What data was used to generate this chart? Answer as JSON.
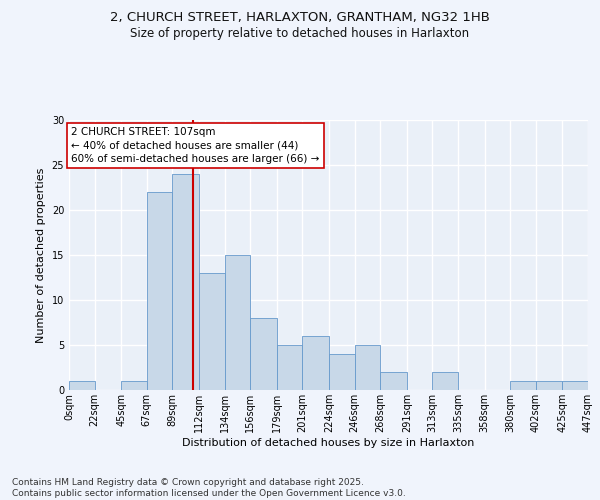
{
  "title_line1": "2, CHURCH STREET, HARLAXTON, GRANTHAM, NG32 1HB",
  "title_line2": "Size of property relative to detached houses in Harlaxton",
  "xlabel": "Distribution of detached houses by size in Harlaxton",
  "ylabel": "Number of detached properties",
  "bin_edges": [
    0,
    22,
    45,
    67,
    89,
    112,
    134,
    156,
    179,
    201,
    224,
    246,
    268,
    291,
    313,
    335,
    358,
    380,
    402,
    425,
    447
  ],
  "bin_labels": [
    "0sqm",
    "22sqm",
    "45sqm",
    "67sqm",
    "89sqm",
    "112sqm",
    "134sqm",
    "156sqm",
    "179sqm",
    "201sqm",
    "224sqm",
    "246sqm",
    "268sqm",
    "291sqm",
    "313sqm",
    "335sqm",
    "358sqm",
    "380sqm",
    "402sqm",
    "425sqm",
    "447sqm"
  ],
  "counts": [
    1,
    0,
    1,
    22,
    24,
    13,
    15,
    8,
    5,
    6,
    4,
    5,
    2,
    0,
    2,
    0,
    0,
    1,
    1,
    1
  ],
  "bar_color": "#c8d8e8",
  "bar_edge_color": "#6699cc",
  "property_size": 107,
  "property_line_color": "#cc0000",
  "annotation_text": "2 CHURCH STREET: 107sqm\n← 40% of detached houses are smaller (44)\n60% of semi-detached houses are larger (66) →",
  "annotation_box_color": "#ffffff",
  "annotation_box_edge": "#cc0000",
  "ylim": [
    0,
    30
  ],
  "yticks": [
    0,
    5,
    10,
    15,
    20,
    25,
    30
  ],
  "background_color": "#eaf0f8",
  "grid_color": "#ffffff",
  "fig_bg_color": "#f0f4fc",
  "footer_text": "Contains HM Land Registry data © Crown copyright and database right 2025.\nContains public sector information licensed under the Open Government Licence v3.0.",
  "title_fontsize": 9.5,
  "subtitle_fontsize": 8.5,
  "axis_label_fontsize": 8,
  "tick_fontsize": 7,
  "annotation_fontsize": 7.5,
  "footer_fontsize": 6.5
}
